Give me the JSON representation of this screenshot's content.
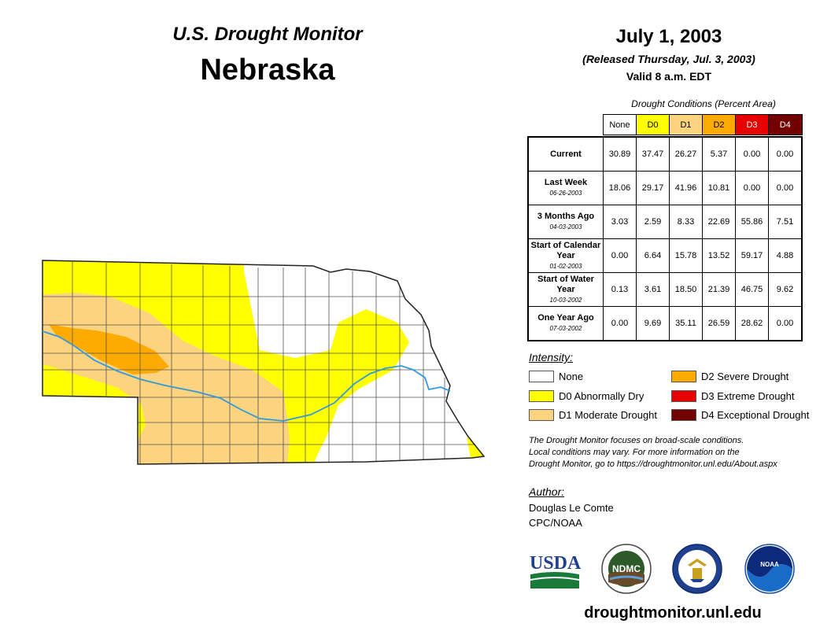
{
  "header": {
    "monitor_title": "U.S. Drought Monitor",
    "state": "Nebraska",
    "date": "July 1, 2003",
    "released": "(Released Thursday, Jul. 3, 2003)",
    "valid": "Valid 8 a.m. EDT"
  },
  "table": {
    "caption": "Drought Conditions (Percent Area)",
    "columns": [
      "None",
      "D0",
      "D1",
      "D2",
      "D3",
      "D4"
    ],
    "column_colors": [
      "#ffffff",
      "#ffff00",
      "#fcd37f",
      "#ffaa00",
      "#e60000",
      "#730000"
    ],
    "rows": [
      {
        "label": "Current",
        "date": "",
        "values": [
          "30.89",
          "37.47",
          "26.27",
          "5.37",
          "0.00",
          "0.00"
        ]
      },
      {
        "label": "Last Week",
        "date": "06-26-2003",
        "values": [
          "18.06",
          "29.17",
          "41.96",
          "10.81",
          "0.00",
          "0.00"
        ]
      },
      {
        "label": "3 Months Ago",
        "date": "04-03-2003",
        "values": [
          "3.03",
          "2.59",
          "8.33",
          "22.69",
          "55.86",
          "7.51"
        ]
      },
      {
        "label": "Start of Calendar Year",
        "date": "01-02-2003",
        "values": [
          "0.00",
          "6.64",
          "15.78",
          "13.52",
          "59.17",
          "4.88"
        ]
      },
      {
        "label": "Start of Water Year",
        "date": "10-03-2002",
        "values": [
          "0.13",
          "3.61",
          "18.50",
          "21.39",
          "46.75",
          "9.62"
        ]
      },
      {
        "label": "One Year Ago",
        "date": "07-03-2002",
        "values": [
          "0.00",
          "9.69",
          "35.11",
          "26.59",
          "28.62",
          "0.00"
        ]
      }
    ]
  },
  "legend": {
    "title": "Intensity:",
    "items": [
      {
        "label": "None",
        "color": "#ffffff"
      },
      {
        "label": "D0 Abnormally Dry",
        "color": "#ffff00"
      },
      {
        "label": "D1 Moderate Drought",
        "color": "#fcd37f"
      },
      {
        "label": "D2 Severe Drought",
        "color": "#ffaa00"
      },
      {
        "label": "D3 Extreme Drought",
        "color": "#e60000"
      },
      {
        "label": "D4 Exceptional Drought",
        "color": "#730000"
      }
    ]
  },
  "note": {
    "line1": "The Drought Monitor focuses on broad-scale conditions.",
    "line2": "Local conditions may vary. For more information on the",
    "line3": "Drought Monitor, go to https://droughtmonitor.unl.edu/About.aspx"
  },
  "author": {
    "title": "Author:",
    "name": "Douglas Le Comte",
    "org": "CPC/NOAA"
  },
  "logos": {
    "usda": "USDA",
    "ndmc": "NDMC",
    "noaa": "NOAA"
  },
  "footer": {
    "url": "droughtmonitor.unl.edu"
  },
  "map": {
    "river_color": "#3399dd",
    "county_line_color": "#555555"
  }
}
